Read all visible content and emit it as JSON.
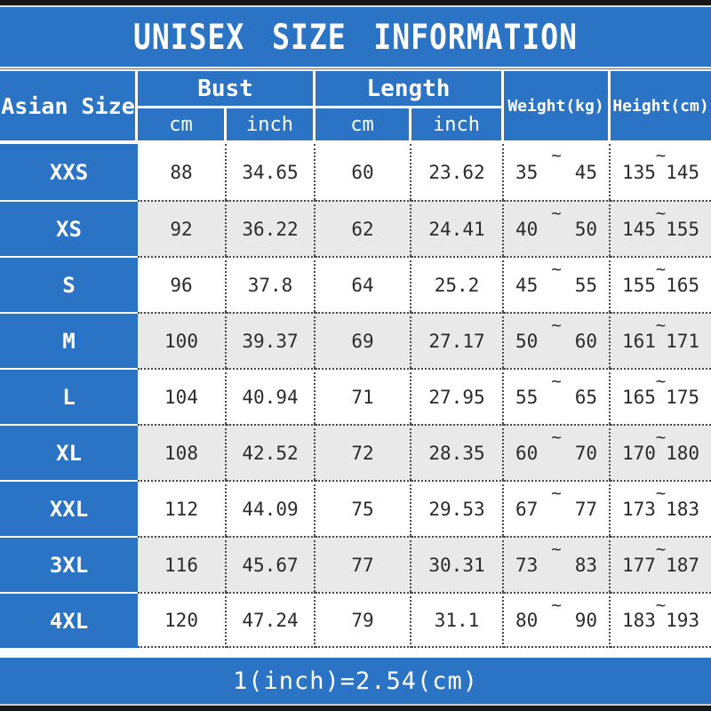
{
  "colors": {
    "accent_blue": "#2b73c5",
    "row_alt_gray": "#e9e9e9",
    "frame_black": "#161616",
    "text_dark": "#2b2b2b"
  },
  "chart_data": {
    "type": "table",
    "title": "UNISEX SIZE INFORMATION",
    "footer_note": "1(inch)=2.54(cm)",
    "range_separator": "~",
    "columns": {
      "size": "Asian Size",
      "groups": [
        {
          "label": "Bust",
          "subs": [
            "cm",
            "inch"
          ]
        },
        {
          "label": "Length",
          "subs": [
            "cm",
            "inch"
          ]
        }
      ],
      "weight": "Weight(kg)",
      "height": "Height(cm)"
    },
    "rows": [
      {
        "size": "XXS",
        "bust_cm": "88",
        "bust_inch": "34.65",
        "length_cm": "60",
        "length_inch": "23.62",
        "weight_min": "35",
        "weight_max": "45",
        "height_min": "135",
        "height_max": "145"
      },
      {
        "size": "XS",
        "bust_cm": "92",
        "bust_inch": "36.22",
        "length_cm": "62",
        "length_inch": "24.41",
        "weight_min": "40",
        "weight_max": "50",
        "height_min": "145",
        "height_max": "155"
      },
      {
        "size": "S",
        "bust_cm": "96",
        "bust_inch": "37.8",
        "length_cm": "64",
        "length_inch": "25.2",
        "weight_min": "45",
        "weight_max": "55",
        "height_min": "155",
        "height_max": "165"
      },
      {
        "size": "M",
        "bust_cm": "100",
        "bust_inch": "39.37",
        "length_cm": "69",
        "length_inch": "27.17",
        "weight_min": "50",
        "weight_max": "60",
        "height_min": "161",
        "height_max": "171"
      },
      {
        "size": "L",
        "bust_cm": "104",
        "bust_inch": "40.94",
        "length_cm": "71",
        "length_inch": "27.95",
        "weight_min": "55",
        "weight_max": "65",
        "height_min": "165",
        "height_max": "175"
      },
      {
        "size": "XL",
        "bust_cm": "108",
        "bust_inch": "42.52",
        "length_cm": "72",
        "length_inch": "28.35",
        "weight_min": "60",
        "weight_max": "70",
        "height_min": "170",
        "height_max": "180"
      },
      {
        "size": "XXL",
        "bust_cm": "112",
        "bust_inch": "44.09",
        "length_cm": "75",
        "length_inch": "29.53",
        "weight_min": "67",
        "weight_max": "77",
        "height_min": "173",
        "height_max": "183"
      },
      {
        "size": "3XL",
        "bust_cm": "116",
        "bust_inch": "45.67",
        "length_cm": "77",
        "length_inch": "30.31",
        "weight_min": "73",
        "weight_max": "83",
        "height_min": "177",
        "height_max": "187"
      },
      {
        "size": "4XL",
        "bust_cm": "120",
        "bust_inch": "47.24",
        "length_cm": "79",
        "length_inch": "31.1",
        "weight_min": "80",
        "weight_max": "90",
        "height_min": "183",
        "height_max": "193"
      }
    ]
  }
}
